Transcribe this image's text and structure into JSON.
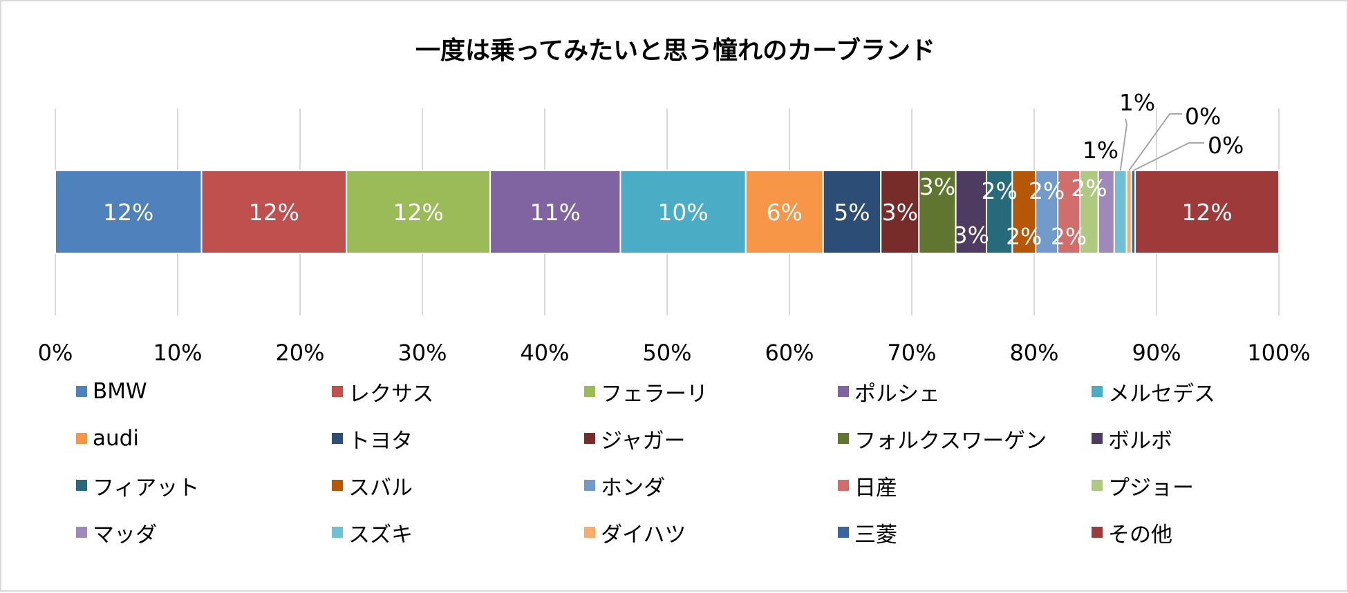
{
  "chart_data": {
    "type": "bar",
    "orientation": "horizontal",
    "stacked": "percent",
    "title": "一度は乗ってみたいと思う憧れのカーブランド",
    "xlim": [
      0,
      100
    ],
    "x_ticks": [
      "0%",
      "10%",
      "20%",
      "30%",
      "40%",
      "50%",
      "60%",
      "70%",
      "80%",
      "90%",
      "100%"
    ],
    "grid": "vertical",
    "legend_position": "bottom",
    "series": [
      {
        "name": "BMW",
        "value": 11.9,
        "label": "12%",
        "color": "#4F81BD"
      },
      {
        "name": "レクサス",
        "value": 11.8,
        "label": "12%",
        "color": "#C0504D"
      },
      {
        "name": "フェラーリ",
        "value": 11.7,
        "label": "12%",
        "color": "#9BBB59"
      },
      {
        "name": "ポルシェ",
        "value": 10.6,
        "label": "11%",
        "color": "#8064A2"
      },
      {
        "name": "メルセデス",
        "value": 10.2,
        "label": "10%",
        "color": "#4BACC6"
      },
      {
        "name": "audi",
        "value": 6.3,
        "label": "6%",
        "color": "#F79646"
      },
      {
        "name": "トヨタ",
        "value": 4.7,
        "label": "5%",
        "color": "#2C4D75"
      },
      {
        "name": "ジャガー",
        "value": 3.1,
        "label": "3%",
        "color": "#772C2A"
      },
      {
        "name": "フォルクスワーゲン",
        "value": 3.0,
        "label": "3%",
        "color": "#5F7530"
      },
      {
        "name": "ボルボ",
        "value": 2.5,
        "label": "3%",
        "color": "#4D3B62"
      },
      {
        "name": "フィアット",
        "value": 2.1,
        "label": "2%",
        "color": "#276A7C"
      },
      {
        "name": "スバル",
        "value": 1.9,
        "label": "2%",
        "color": "#B65708"
      },
      {
        "name": "ホンダ",
        "value": 1.8,
        "label": "2%",
        "color": "#729ACA"
      },
      {
        "name": "日産",
        "value": 1.8,
        "label": "2%",
        "color": "#D16E6C"
      },
      {
        "name": "プジョー",
        "value": 1.5,
        "label": "2%",
        "color": "#AFCA80"
      },
      {
        "name": "マッダ",
        "value": 1.3,
        "label": "1%",
        "color": "#9F88BA"
      },
      {
        "name": "スズキ",
        "value": 1.0,
        "label": "1%",
        "color": "#6FC0D5"
      },
      {
        "name": "ダイハツ",
        "value": 0.4,
        "label": "0%",
        "color": "#F9AC6E"
      },
      {
        "name": "三菱",
        "value": 0.3,
        "label": "0%",
        "color": "#3A66A0"
      },
      {
        "name": "その他",
        "value": 11.7,
        "label": "12%",
        "color": "#9E3B3A"
      }
    ]
  }
}
